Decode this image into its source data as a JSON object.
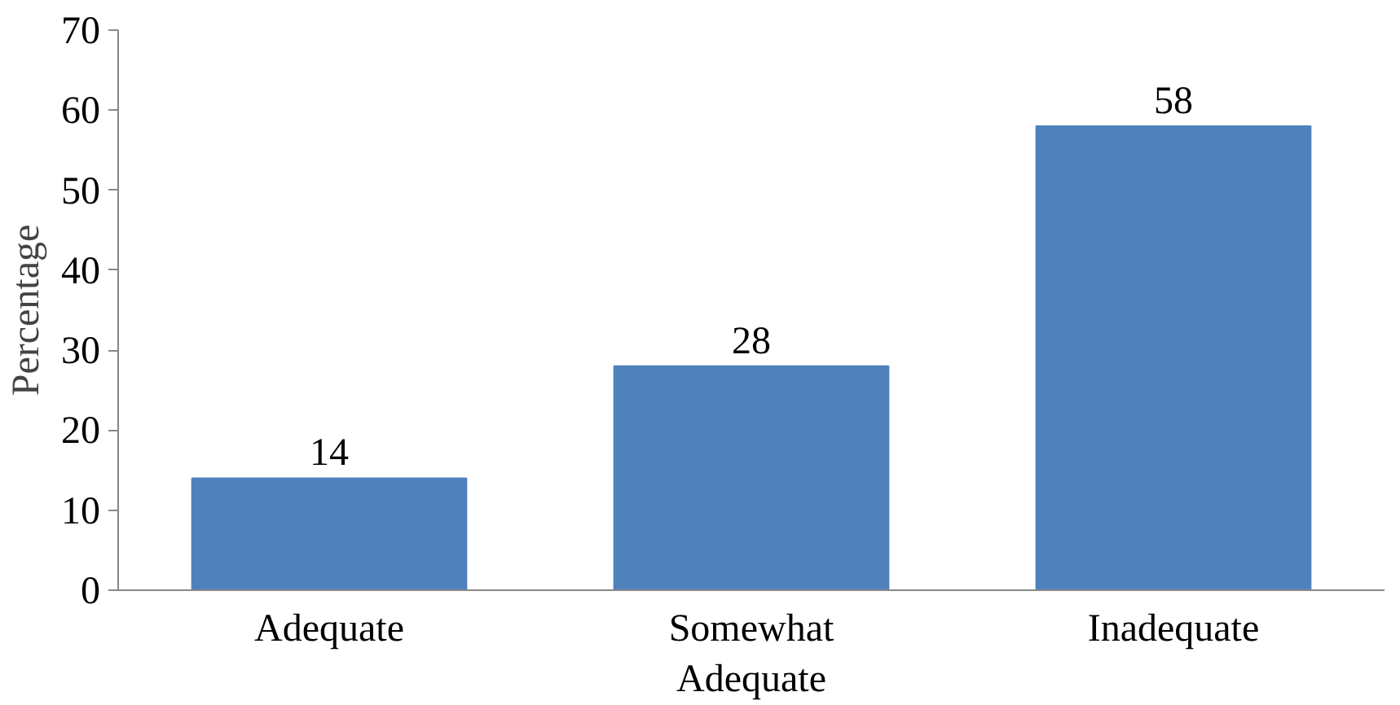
{
  "chart_data": {
    "type": "bar",
    "ylabel": "Percentage",
    "categories": [
      "Adequate",
      "Somewhat Adequate",
      "Inadequate"
    ],
    "values": [
      14,
      28,
      58
    ],
    "color": "#4f81bd",
    "ylim": [
      0,
      70
    ],
    "yticks": [
      0,
      10,
      20,
      30,
      40,
      50,
      60,
      70
    ],
    "grid": false,
    "data_labels": true
  }
}
